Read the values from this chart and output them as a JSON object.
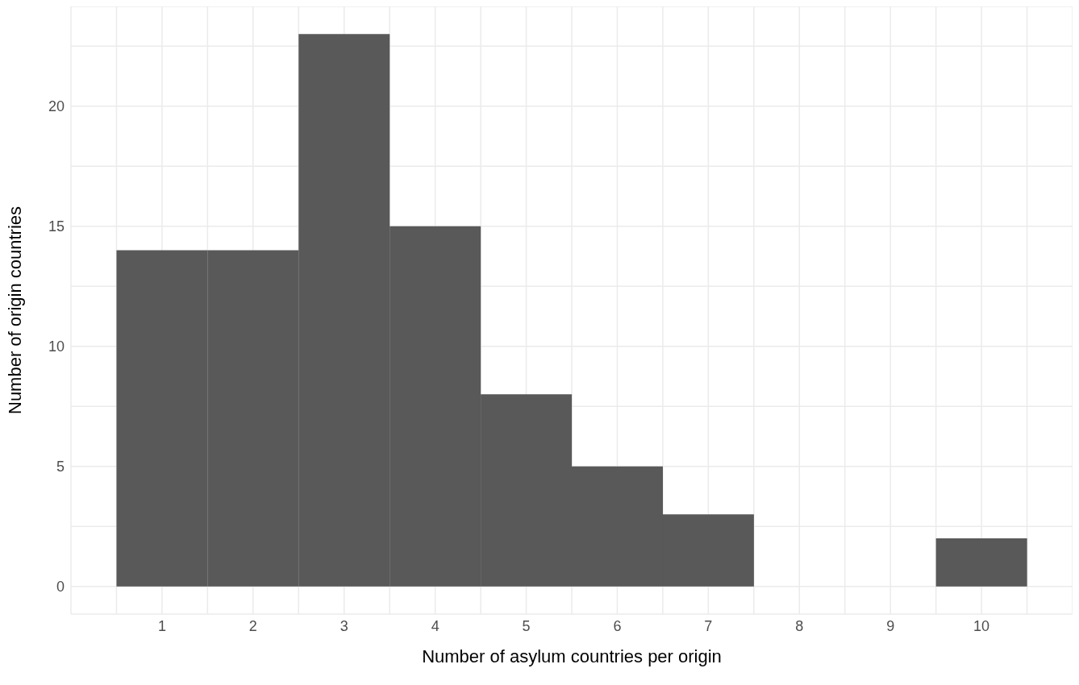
{
  "chart_data": {
    "type": "histogram",
    "xlabel": "Number of asylum countries per origin",
    "ylabel": "Number of origin countries",
    "bins": [
      0.5,
      1.5,
      2.5,
      3.5,
      4.5,
      5.5,
      6.5,
      7.5,
      8.5,
      9.5,
      10.5
    ],
    "values": [
      14,
      14,
      23,
      15,
      8,
      5,
      3,
      0,
      0,
      2
    ],
    "color": "#595959",
    "xlim": [
      0,
      11
    ],
    "xticks": [
      {
        "value": 0.5,
        "label": null
      },
      1,
      {
        "value": 1.5,
        "label": null
      },
      2,
      {
        "value": 2.5,
        "label": null
      },
      3,
      {
        "value": 3.5,
        "label": null
      },
      4,
      {
        "value": 4.5,
        "label": null
      },
      5,
      {
        "value": 5.5,
        "label": null
      },
      6,
      {
        "value": 6.5,
        "label": null
      },
      7,
      {
        "value": 7.5,
        "label": null
      },
      8,
      {
        "value": 8.5,
        "label": null
      },
      9,
      {
        "value": 9.5,
        "label": null
      },
      10,
      {
        "value": 10.5,
        "label": null
      }
    ],
    "ylim": [
      -1.15,
      24.15
    ],
    "yticks": [
      0,
      {
        "value": 2.5,
        "label": null
      },
      5,
      {
        "value": 7.5,
        "label": null
      },
      10,
      {
        "value": 12.5,
        "label": null
      },
      15,
      {
        "value": 17.5,
        "label": null
      },
      20,
      {
        "value": 22.5,
        "label": null
      }
    ],
    "grid": true
  }
}
